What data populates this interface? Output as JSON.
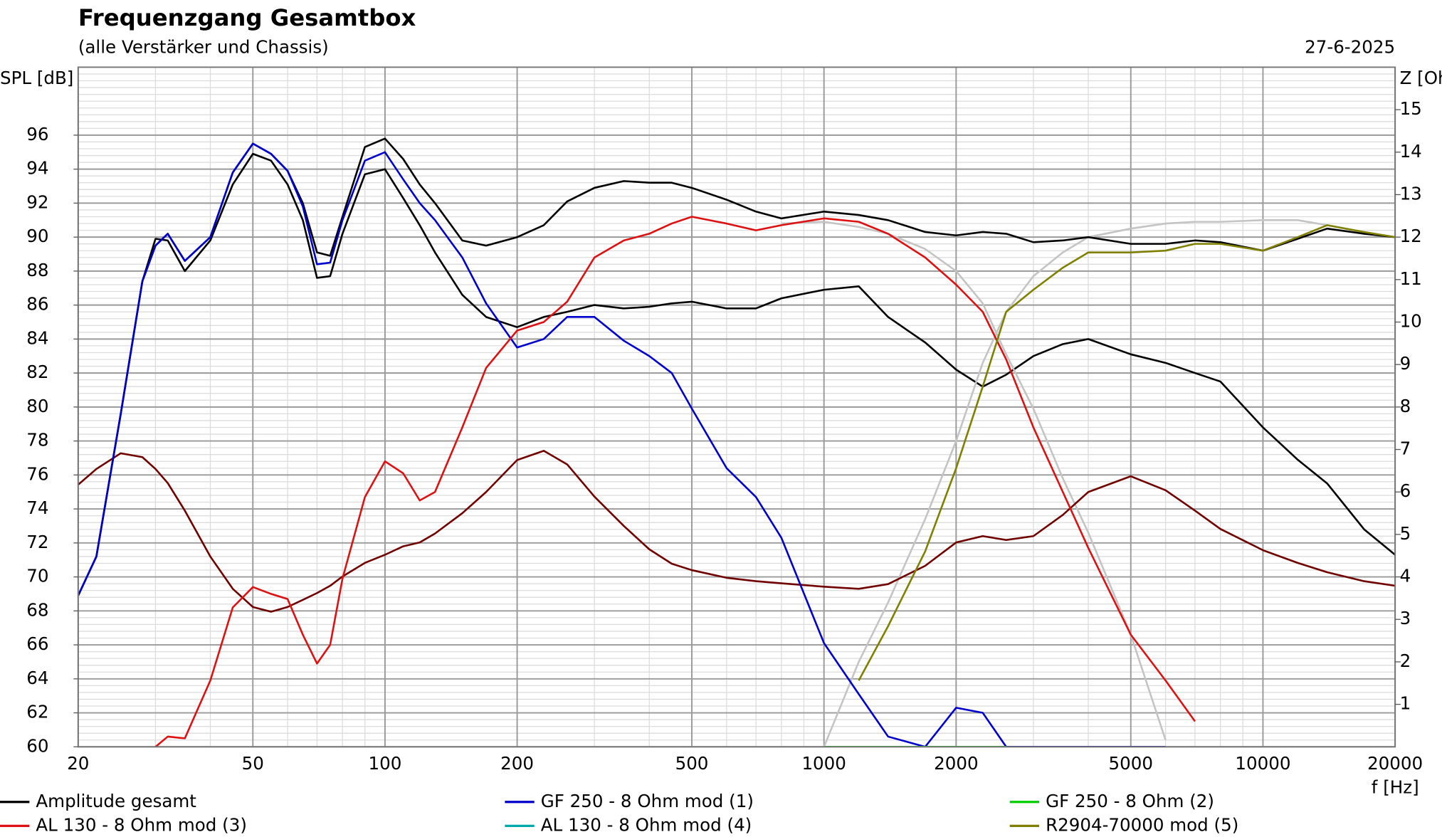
{
  "chart_data": {
    "type": "line",
    "title": "Frequenzgang Gesamtbox",
    "subtitle": "(alle Verstärker und Chassis)",
    "date": "27-6-2025",
    "y_label": "SPL [dB]",
    "y2_label": "Z [Ohm]",
    "x_label": "f [Hz]",
    "x_scale": "log",
    "grid": true,
    "legend": "bottom",
    "xlim": [
      20,
      20000
    ],
    "xticks": [
      20,
      50,
      100,
      200,
      500,
      1000,
      2000,
      5000,
      10000,
      20000
    ],
    "ylim": [
      60,
      100
    ],
    "yticks": [
      60,
      62,
      64,
      66,
      68,
      70,
      72,
      74,
      76,
      78,
      80,
      82,
      84,
      86,
      88,
      90,
      92,
      94,
      96
    ],
    "y2lim": [
      0,
      16
    ],
    "y2ticks": [
      1,
      2,
      3,
      4,
      5,
      6,
      7,
      8,
      9,
      10,
      11,
      12,
      13,
      14,
      15
    ],
    "x": [
      20,
      22,
      25,
      28,
      30,
      32,
      35,
      40,
      45,
      50,
      55,
      60,
      65,
      70,
      75,
      80,
      90,
      100,
      110,
      120,
      130,
      150,
      170,
      200,
      230,
      260,
      300,
      350,
      400,
      450,
      500,
      600,
      700,
      800,
      1000,
      1200,
      1400,
      1700,
      2000,
      2300,
      2600,
      3000,
      3500,
      4000,
      5000,
      6000,
      7000,
      8000,
      10000,
      12000,
      14000,
      17000,
      20000
    ],
    "series": [
      {
        "name": "Amplitude gesamt",
        "color": "#000000",
        "values": [
          68.9,
          71.2,
          79.6,
          87.4,
          89.5,
          90.2,
          88.6,
          90.0,
          93.8,
          95.5,
          94.9,
          93.9,
          92.0,
          89.1,
          88.9,
          91.2,
          95.3,
          95.8,
          94.6,
          93.1,
          92.0,
          89.8,
          89.5,
          90.0,
          90.7,
          92.1,
          92.9,
          93.3,
          93.2,
          93.2,
          92.9,
          92.2,
          91.5,
          91.1,
          91.5,
          91.3,
          91.0,
          90.3,
          90.1,
          90.3,
          90.2,
          89.7,
          89.8,
          90.0,
          89.6,
          89.6,
          89.8,
          89.7,
          89.2,
          89.9,
          90.5,
          90.2,
          90.0
        ]
      },
      {
        "name": "GF 250 - 8 Ohm mod (1)",
        "color": "#0000cc",
        "values": [
          68.9,
          71.2,
          79.6,
          87.4,
          89.5,
          90.2,
          88.6,
          90.0,
          93.8,
          95.5,
          94.9,
          93.9,
          91.8,
          88.4,
          88.5,
          91.0,
          94.5,
          95.0,
          93.4,
          92.0,
          91.0,
          88.8,
          86.1,
          83.5,
          84.0,
          85.3,
          85.3,
          83.9,
          83.0,
          82.0,
          79.9,
          76.4,
          74.7,
          72.3,
          66.1,
          63.1,
          60.6,
          60,
          62.3,
          62.0,
          60,
          60,
          60,
          60,
          60,
          60,
          null,
          null,
          null,
          null,
          null,
          null,
          null
        ]
      },
      {
        "name": "GF 250 - 8 Ohm (2)",
        "color": "#00cc00",
        "values": [
          null,
          null,
          null,
          null,
          null,
          null,
          null,
          null,
          null,
          null,
          null,
          null,
          null,
          null,
          null,
          null,
          null,
          null,
          null,
          null,
          null,
          null,
          null,
          null,
          null,
          null,
          null,
          null,
          null,
          null,
          null,
          null,
          null,
          null,
          60,
          60,
          60,
          60,
          60,
          60,
          60,
          null,
          null,
          null,
          null,
          null,
          null,
          null,
          null,
          null,
          null,
          null,
          null
        ]
      },
      {
        "name": "AL 130 - 8 Ohm mod (3)",
        "color": "#dd1111",
        "values": [
          null,
          null,
          null,
          null,
          60,
          60.6,
          60.5,
          63.9,
          68.2,
          69.4,
          69.0,
          68.7,
          66.6,
          64.9,
          66.0,
          69.9,
          74.7,
          76.8,
          76.1,
          74.5,
          75.0,
          78.8,
          82.3,
          84.5,
          85.0,
          86.2,
          88.8,
          89.8,
          90.2,
          90.8,
          91.2,
          90.8,
          90.4,
          90.7,
          91.1,
          90.9,
          90.2,
          88.8,
          87.2,
          85.6,
          82.8,
          78.8,
          75.0,
          71.7,
          66.6,
          63.9,
          61.5,
          null,
          null,
          null,
          null,
          null,
          null
        ]
      },
      {
        "name": "AL 130 - 8 Ohm mod (4)",
        "color": "#00aaaa",
        "values": [
          null,
          null,
          null,
          null,
          null,
          null,
          null,
          null,
          null,
          null,
          null,
          null,
          null,
          null,
          null,
          null,
          null,
          null,
          null,
          null,
          null,
          null,
          null,
          null,
          null,
          null,
          null,
          null,
          null,
          null,
          null,
          null,
          null,
          null,
          null,
          null,
          null,
          null,
          null,
          null,
          null,
          null,
          null,
          null,
          null,
          null,
          null,
          null,
          null,
          null,
          null,
          null,
          null
        ]
      },
      {
        "name": "R2904-70000 mod (5)",
        "color": "#808000",
        "values": [
          null,
          null,
          null,
          null,
          null,
          null,
          null,
          null,
          null,
          null,
          null,
          null,
          null,
          null,
          null,
          null,
          null,
          null,
          null,
          null,
          null,
          null,
          null,
          null,
          null,
          null,
          null,
          null,
          null,
          null,
          null,
          null,
          null,
          null,
          null,
          63.9,
          67.1,
          71.5,
          76.4,
          81.2,
          85.6,
          86.9,
          88.2,
          89.1,
          89.1,
          89.2,
          89.6,
          89.6,
          89.2,
          90.0,
          90.7,
          90.3,
          90.0
        ]
      },
      {
        "color": "#000000",
        "values": [
          68.9,
          71.2,
          79.6,
          87.4,
          89.9,
          89.8,
          88.0,
          89.8,
          93.1,
          94.9,
          94.5,
          93.1,
          91.0,
          87.6,
          87.7,
          90.2,
          93.7,
          94.0,
          92.3,
          90.7,
          89.1,
          86.6,
          85.3,
          84.7,
          85.3,
          85.6,
          86.0,
          85.8,
          85.9,
          86.1,
          86.2,
          85.8,
          85.8,
          86.4,
          86.9,
          87.1,
          85.3,
          83.8,
          82.2,
          81.2,
          81.9,
          83.0,
          83.7,
          84.0,
          83.1,
          82.6,
          82.0,
          81.5,
          78.8,
          76.9,
          75.5,
          72.8,
          71.3
        ]
      },
      {
        "color": "#c4c4c4",
        "values": [
          null,
          null,
          null,
          null,
          null,
          null,
          null,
          null,
          null,
          null,
          null,
          null,
          null,
          null,
          null,
          null,
          null,
          null,
          null,
          null,
          null,
          null,
          null,
          null,
          null,
          null,
          null,
          null,
          null,
          null,
          null,
          null,
          null,
          null,
          60,
          65.0,
          68.5,
          73.4,
          78.0,
          82.6,
          85.6,
          87.7,
          89.1,
          90.0,
          90.5,
          90.8,
          90.9,
          90.9,
          91.0,
          91.0,
          90.7,
          90.3,
          90.0
        ]
      },
      {
        "color": "#c4c4c4",
        "values": [
          null,
          null,
          null,
          null,
          null,
          null,
          null,
          null,
          null,
          null,
          null,
          null,
          null,
          null,
          null,
          null,
          null,
          null,
          null,
          null,
          null,
          null,
          null,
          null,
          null,
          null,
          null,
          null,
          null,
          null,
          null,
          null,
          null,
          90.8,
          90.9,
          90.6,
          90.2,
          89.3,
          88.0,
          86.1,
          83.1,
          79.9,
          75.8,
          72.6,
          66.6,
          60.4,
          null,
          null,
          null,
          null,
          null,
          null,
          null
        ]
      },
      {
        "color": "#700000",
        "axis": "y2",
        "values": [
          6.17,
          6.54,
          6.91,
          6.82,
          6.54,
          6.21,
          5.56,
          4.48,
          3.72,
          3.29,
          3.18,
          3.29,
          3.46,
          3.62,
          3.79,
          4.01,
          4.33,
          4.52,
          4.72,
          4.81,
          5.02,
          5.5,
          6.0,
          6.75,
          6.97,
          6.65,
          5.89,
          5.2,
          4.65,
          4.31,
          4.16,
          3.98,
          3.9,
          3.85,
          3.77,
          3.72,
          3.83,
          4.26,
          4.81,
          4.96,
          4.87,
          4.96,
          5.46,
          6.0,
          6.37,
          6.04,
          5.56,
          5.13,
          4.63,
          4.33,
          4.11,
          3.9,
          3.79
        ]
      }
    ]
  }
}
